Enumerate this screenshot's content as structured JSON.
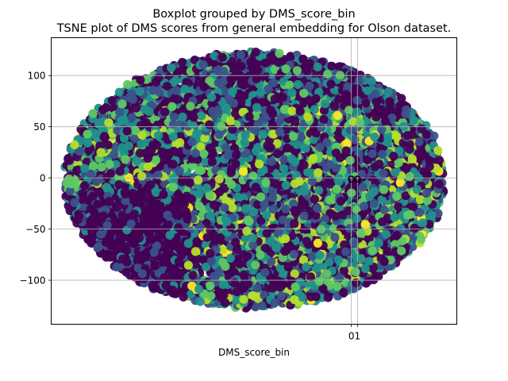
{
  "chart_data": {
    "type": "scatter",
    "title": "Boxplot grouped by DMS_score_bin",
    "subtitle": "TSNE plot of DMS scores from general embedding for Olson dataset.",
    "xlabel": "DMS_score_bin",
    "ylabel": "",
    "grid": true,
    "xlim": [
      -0.5,
      1.5
    ],
    "ylim": [
      -143,
      137
    ],
    "x_ticks": [
      {
        "value": 0.98,
        "label": "0"
      },
      {
        "value": 1.01,
        "label": "1"
      }
    ],
    "y_ticks": [
      {
        "value": 100,
        "label": "100"
      },
      {
        "value": 50,
        "label": "50"
      },
      {
        "value": 0,
        "label": "0"
      },
      {
        "value": -50,
        "label": "−50"
      },
      {
        "value": -100,
        "label": "−100"
      }
    ],
    "colormap": "viridis",
    "palette": [
      "#440154",
      "#3b528b",
      "#21918c",
      "#5ec962",
      "#b5de2b",
      "#fde725"
    ],
    "point_cloud": {
      "shape": "ellipse",
      "center": [
        0,
        -2
      ],
      "x_extent": [
        -130,
        130
      ],
      "y_extent": [
        -125,
        123
      ],
      "dark_region": "lower-left",
      "approx_points": 9000
    },
    "boxplot_markers": [
      {
        "x": 0.98,
        "y": -1,
        "style": "circle-outline"
      },
      {
        "x": 1.01,
        "y": -1,
        "style": "circle-outline"
      }
    ]
  }
}
